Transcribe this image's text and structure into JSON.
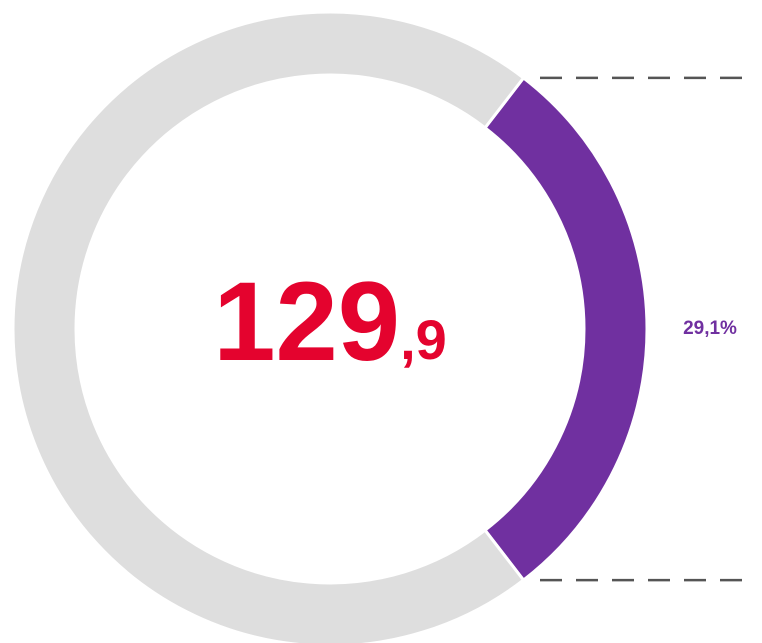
{
  "chart_data": {
    "type": "pie",
    "values": [
      29.1,
      70.9
    ],
    "value_labels": [
      "29,1%",
      null
    ],
    "colors": [
      "#7030a0",
      "#dedede"
    ],
    "center_label": {
      "main": "129",
      "decimal": ",9"
    },
    "center_color": "#e4032e"
  }
}
